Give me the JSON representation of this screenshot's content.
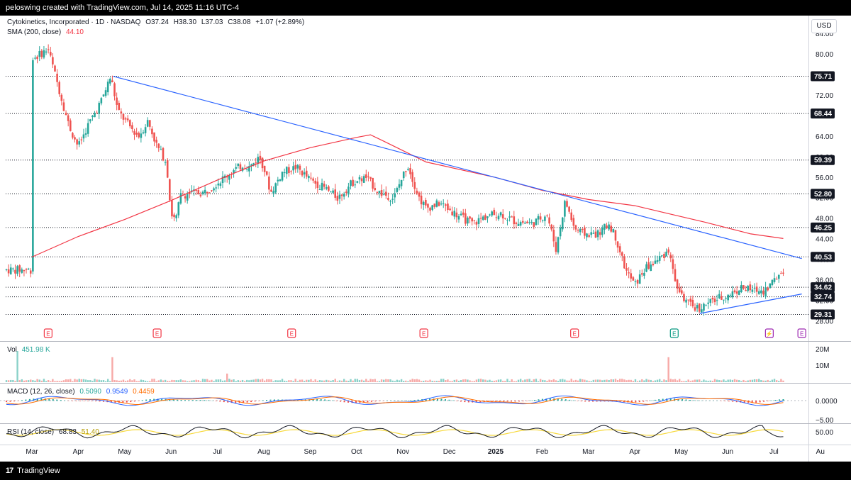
{
  "header": {
    "text": "peloswing created with TradingView.com, Jul 14, 2025 11:16 UTC-4"
  },
  "footer": {
    "brand": "TradingView",
    "logo_glyph": "17"
  },
  "legend": {
    "symbol": "Cytokinetics, Incorporated · 1D · NASDAQ",
    "o": "O37.24",
    "h": "H38.30",
    "l": "L37.03",
    "c": "C38.08",
    "chg": "+1.07 (+2.89%)",
    "sma_label": "SMA (200, close)",
    "sma_value": "44.10",
    "vol_label": "Vol",
    "vol_value": "451.98 K",
    "macd_label": "MACD (12, 26, close)",
    "macd_v1": "0.5090",
    "macd_v2": "0.9549",
    "macd_v3": "0.4459",
    "rsi_label": "RSI (14, close)",
    "rsi_v1": "68.83",
    "rsi_v2": "51.40"
  },
  "currency": "USD",
  "colors": {
    "up": "#26a69a",
    "down": "#ef5350",
    "sma": "#f23645",
    "trend": "#2962ff",
    "macd": "#2962ff",
    "signal": "#ff6d00",
    "rsi": "#131722",
    "rsi_ma": "#f7d93b",
    "label_bg": "#131722",
    "earnings": "#f23645",
    "dividend": "#089981",
    "event": "#9c27b0"
  },
  "chart_data": [
    {
      "type": "candlestick",
      "title": "Cytokinetics, Incorporated · 1D · NASDAQ",
      "x": [
        "Mar",
        "Apr",
        "May",
        "Jun",
        "Jul",
        "Aug",
        "Sep",
        "Oct",
        "Nov",
        "Dec",
        "2025",
        "Feb",
        "Mar",
        "Apr",
        "May",
        "Jun",
        "Jul",
        "Au"
      ],
      "ylim": [
        26,
        86
      ],
      "y_ticks": [
        "84.00",
        "80.00",
        "76.00",
        "72.00",
        "68.00",
        "64.00",
        "60.00",
        "56.00",
        "52.00",
        "48.00",
        "44.00",
        "40.00",
        "36.00",
        "32.00",
        "28.00"
      ],
      "close_path": [
        [
          0,
          79
        ],
        [
          0.35,
          81
        ],
        [
          0.5,
          76
        ],
        [
          0.8,
          66
        ],
        [
          1.0,
          62
        ],
        [
          1.2,
          66
        ],
        [
          1.5,
          71
        ],
        [
          1.7,
          75.7
        ],
        [
          1.85,
          69
        ],
        [
          2.1,
          66
        ],
        [
          2.3,
          64
        ],
        [
          2.5,
          67
        ],
        [
          2.7,
          62
        ],
        [
          2.9,
          59
        ],
        [
          3.0,
          49
        ],
        [
          3.1,
          47.5
        ],
        [
          3.2,
          52.5
        ],
        [
          3.45,
          53
        ],
        [
          3.7,
          53
        ],
        [
          4.0,
          55
        ],
        [
          4.3,
          57
        ],
        [
          4.55,
          58.5
        ],
        [
          4.7,
          58
        ],
        [
          4.9,
          60
        ],
        [
          5.0,
          58
        ],
        [
          5.15,
          53
        ],
        [
          5.4,
          57
        ],
        [
          5.7,
          58
        ],
        [
          6.0,
          55.5
        ],
        [
          6.3,
          54
        ],
        [
          6.6,
          52
        ],
        [
          6.9,
          55
        ],
        [
          7.2,
          56
        ],
        [
          7.5,
          53
        ],
        [
          7.8,
          52
        ],
        [
          8.1,
          58.5
        ],
        [
          8.35,
          52
        ],
        [
          8.5,
          50
        ],
        [
          8.8,
          51
        ],
        [
          9.2,
          48.5
        ],
        [
          9.5,
          47
        ],
        [
          9.8,
          48.5
        ],
        [
          10.1,
          49
        ],
        [
          10.4,
          47.5
        ],
        [
          10.8,
          47
        ],
        [
          11.1,
          49
        ],
        [
          11.3,
          42
        ],
        [
          11.5,
          51.5
        ],
        [
          11.7,
          46
        ],
        [
          11.9,
          45
        ],
        [
          12.2,
          45
        ],
        [
          12.45,
          47
        ],
        [
          12.6,
          44
        ],
        [
          12.8,
          38
        ],
        [
          13.0,
          35
        ],
        [
          13.2,
          38
        ],
        [
          13.5,
          40
        ],
        [
          13.75,
          42
        ],
        [
          13.85,
          36
        ],
        [
          14.0,
          33
        ],
        [
          14.2,
          31
        ],
        [
          14.4,
          30.5
        ],
        [
          14.6,
          31.5
        ],
        [
          14.8,
          32.5
        ],
        [
          15.0,
          33
        ],
        [
          15.3,
          34.5
        ],
        [
          15.5,
          34
        ],
        [
          15.8,
          34
        ],
        [
          15.95,
          35.5
        ],
        [
          16.1,
          37
        ],
        [
          16.2,
          38
        ]
      ],
      "sma_200": [
        [
          0,
          40.5
        ],
        [
          1.0,
          44.5
        ],
        [
          2.0,
          47.8
        ],
        [
          3.0,
          51.5
        ],
        [
          4.0,
          55.5
        ],
        [
          5.0,
          59.2
        ],
        [
          6.0,
          61.8
        ],
        [
          7.0,
          63.8
        ],
        [
          7.3,
          64.3
        ],
        [
          7.6,
          63
        ],
        [
          8.5,
          59
        ],
        [
          10,
          56
        ],
        [
          11,
          53.5
        ],
        [
          12,
          51.7
        ],
        [
          13,
          50.5
        ],
        [
          13.7,
          49
        ],
        [
          14.5,
          47.3
        ],
        [
          15.5,
          45
        ],
        [
          16.2,
          44.1
        ]
      ],
      "trendlines": [
        {
          "from": [
            1.75,
            75.71
          ],
          "to": [
            16.6,
            40.2
          ]
        },
        {
          "from": [
            14.4,
            29.5
          ],
          "to": [
            16.6,
            33.3
          ]
        }
      ],
      "price_levels": [
        "75.71",
        "68.44",
        "59.39",
        "52.80",
        "46.25",
        "40.53",
        "34.62",
        "32.74",
        "29.31"
      ],
      "events": [
        {
          "x": 0.35,
          "glyph": "E",
          "kind": "earnings"
        },
        {
          "x": 2.7,
          "glyph": "E",
          "kind": "earnings"
        },
        {
          "x": 5.6,
          "glyph": "E",
          "kind": "earnings"
        },
        {
          "x": 8.45,
          "glyph": "E",
          "kind": "earnings"
        },
        {
          "x": 11.7,
          "glyph": "E",
          "kind": "earnings"
        },
        {
          "x": 13.85,
          "glyph": "E",
          "kind": "dividend"
        },
        {
          "x": 15.9,
          "glyph": "⚡",
          "kind": "event"
        },
        {
          "x": 16.6,
          "glyph": "E",
          "kind": "event"
        }
      ]
    },
    {
      "type": "bar",
      "title": "Vol",
      "y_ticks": [
        "20M",
        "10M"
      ],
      "ylim": [
        0,
        24
      ]
    },
    {
      "type": "line",
      "title": "MACD (12, 26, close)",
      "y_ticks": [
        "0.0000",
        "−5.00"
      ]
    },
    {
      "type": "line",
      "title": "RSI (14, close)",
      "y_ticks": [
        "50.00"
      ]
    }
  ]
}
